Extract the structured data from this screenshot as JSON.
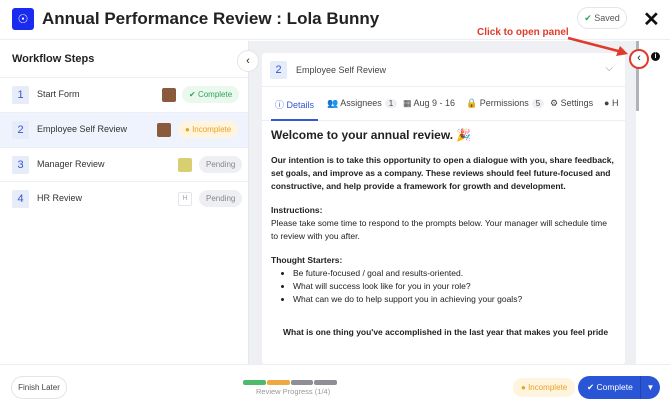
{
  "header": {
    "title": "Annual Performance Review : Lola Bunny",
    "saved_label": "Saved",
    "close_icon": "close-icon",
    "logo_icon": "award-icon"
  },
  "sidebar": {
    "title": "Workflow Steps",
    "steps": [
      {
        "num": "1",
        "label": "Start Form",
        "status": "Complete"
      },
      {
        "num": "2",
        "label": "Employee Self Review",
        "status": "Incomplete"
      },
      {
        "num": "3",
        "label": "Manager Review",
        "status": "Pending"
      },
      {
        "num": "4",
        "label": "HR Review",
        "status": "Pending",
        "avatar_initial": "H"
      }
    ]
  },
  "card": {
    "step_num": "2",
    "step_title": "Employee Self Review",
    "tabs": [
      {
        "label": "Details"
      },
      {
        "label": "Assignees",
        "count": "1"
      },
      {
        "label": "Aug 9 - 16"
      },
      {
        "label": "Permissions",
        "count": "5"
      },
      {
        "label": "Settings"
      },
      {
        "label": "H"
      }
    ],
    "heading": "Welcome to your annual review. 🎉",
    "intro": "Our intention is to take this opportunity to open a dialogue with you, share feedback, set goals, and improve as a company. These reviews should feel future-focused and constructive, and help provide a framework for growth and development.",
    "instructions_title": "Instructions:",
    "instructions": "Please take some time to respond to the prompts below. Your manager will schedule time to review with you after.",
    "starters_title": "Thought Starters:",
    "starters": [
      "Be future-focused / goal and results-oriented.",
      "What will success look like for you in your role?",
      "What can we do to help support you in achieving your goals?"
    ],
    "question": "What is one thing you've accomplished in the last year that makes you feel pride"
  },
  "annotation": "Click to open panel",
  "footer": {
    "finish_later": "Finish Later",
    "progress_label": "Review Progress (1/4)",
    "progress_segments": [
      "complete",
      "incomplete",
      "pending",
      "pending"
    ],
    "status": "Incomplete",
    "complete_label": "Complete"
  },
  "colors": {
    "accent": "#2a56d6",
    "complete": "#2ea65a",
    "incomplete": "#e8a22b",
    "pending": "#8e8f94",
    "annotation": "#e03a2a"
  }
}
